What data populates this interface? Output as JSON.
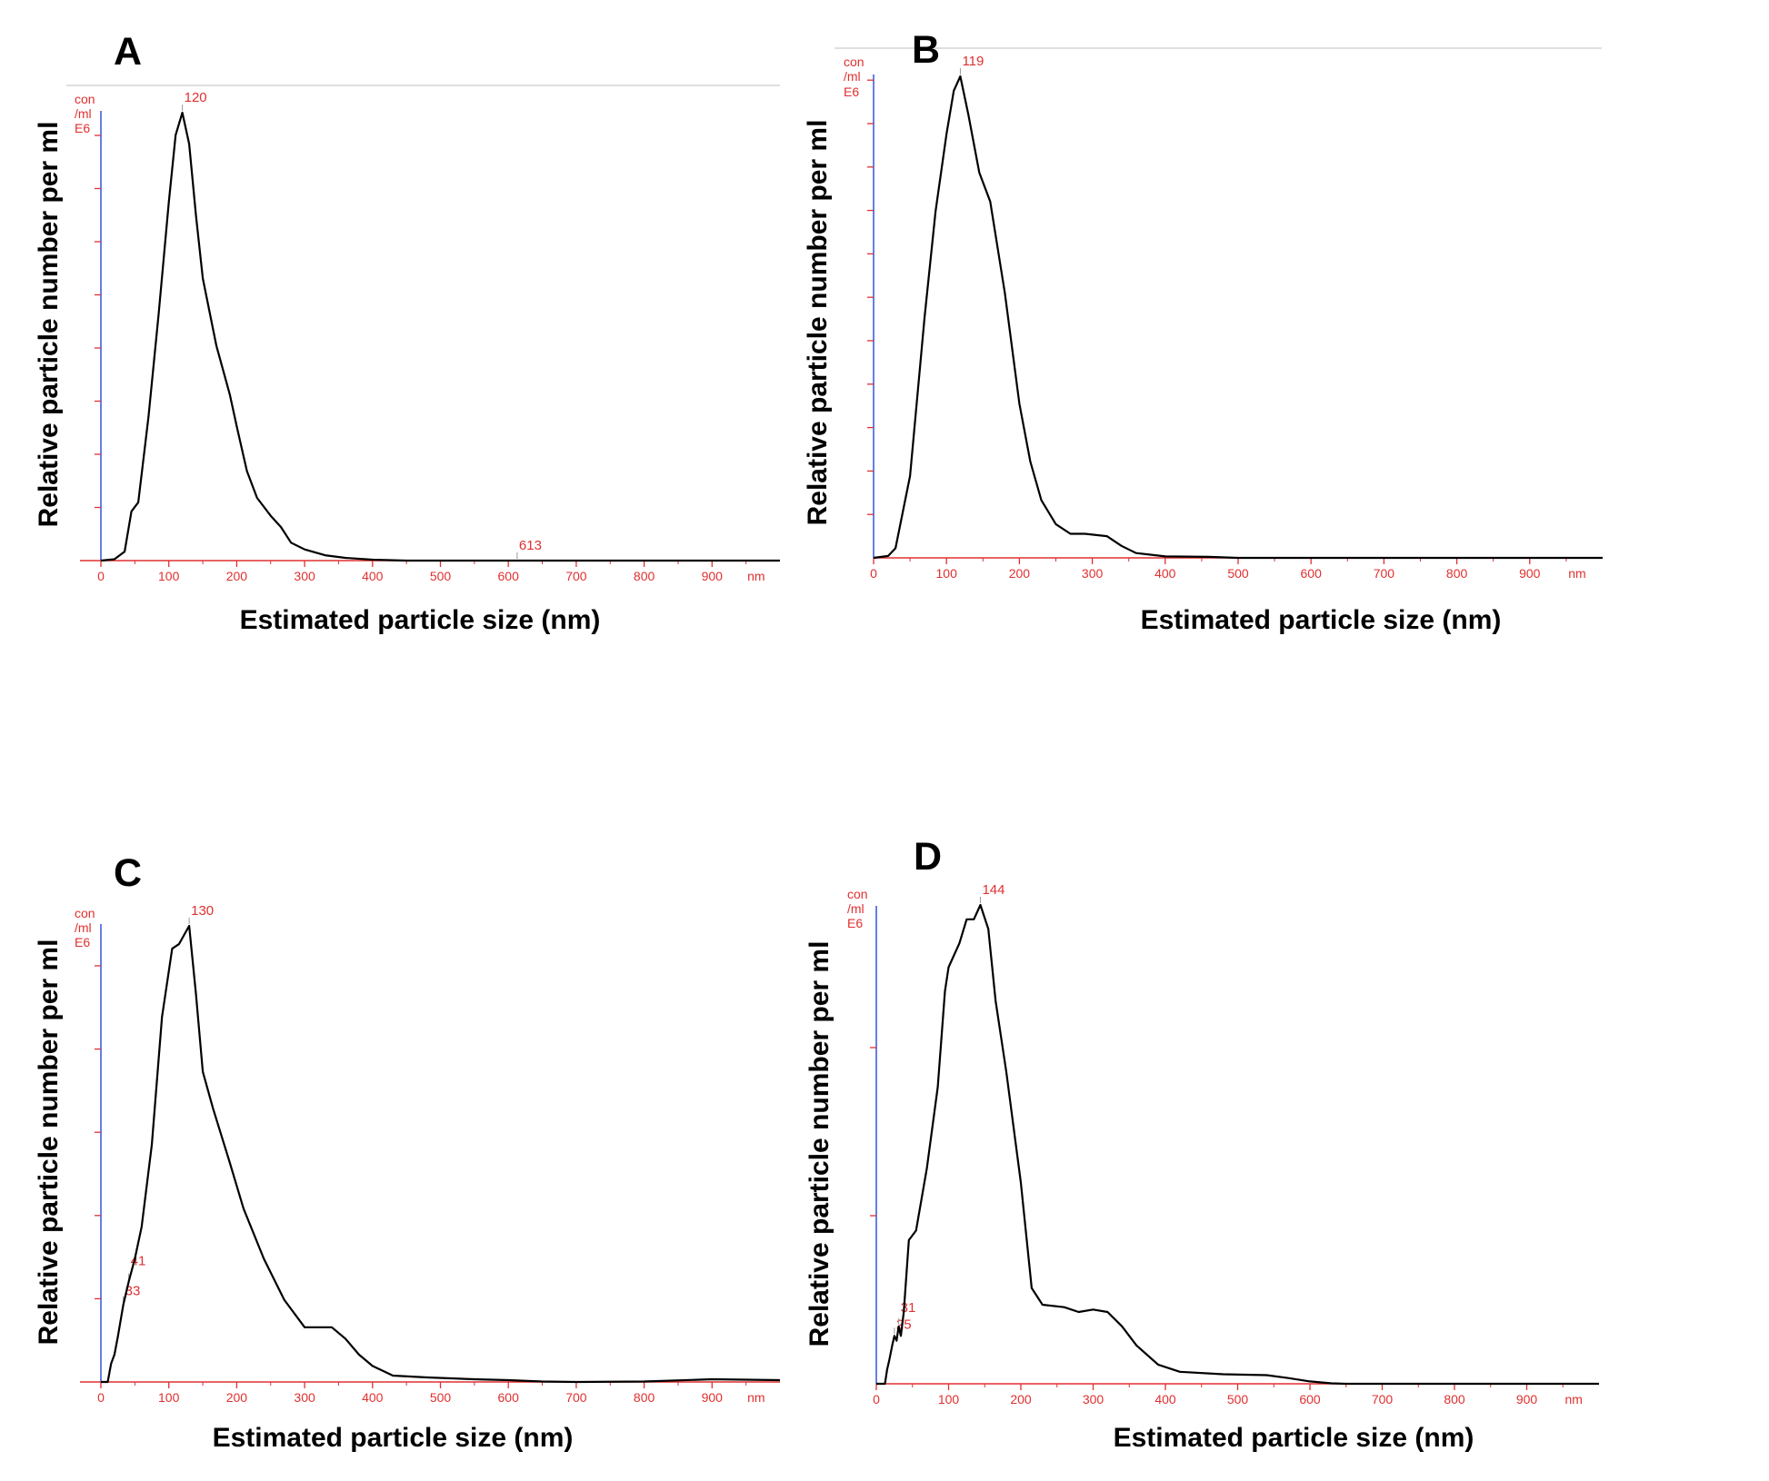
{
  "colors": {
    "axis_x": "#e03030",
    "axis_y": "#3355dd",
    "curve": "#000000",
    "frame": "#cccccc"
  },
  "chart_data": [
    {
      "type": "line",
      "panel": "A",
      "xlabel": "Estimated particle size (nm)",
      "ylabel": "Relative particle number per ml",
      "unit": [
        "con",
        "/ml",
        "E6"
      ],
      "x_unit": "nm",
      "xlim": [
        0,
        1000
      ],
      "x_ticks": [
        0,
        100,
        200,
        300,
        400,
        500,
        600,
        700,
        800,
        900
      ],
      "ylim": [
        0,
        1.0
      ],
      "y_tick_count": 9,
      "grid": false,
      "peak_labels": [
        {
          "x": 120,
          "text": "120"
        },
        {
          "x": 613,
          "text": "613"
        }
      ],
      "series": [
        {
          "x": [
            0,
            20,
            35,
            45,
            55,
            70,
            85,
            100,
            110,
            120,
            130,
            140,
            150,
            170,
            190,
            200,
            215,
            230,
            250,
            265,
            280,
            300,
            330,
            360,
            400,
            450,
            500,
            600,
            700,
            800,
            900,
            1000
          ],
          "y": [
            0,
            0.003,
            0.02,
            0.11,
            0.13,
            0.32,
            0.55,
            0.8,
            0.95,
            1.0,
            0.93,
            0.77,
            0.63,
            0.48,
            0.37,
            0.3,
            0.2,
            0.14,
            0.1,
            0.075,
            0.04,
            0.025,
            0.012,
            0.006,
            0.002,
            0.0,
            0.0,
            0.0,
            0.0,
            0.0,
            0.0,
            0.0
          ]
        }
      ]
    },
    {
      "type": "line",
      "panel": "B",
      "xlabel": "Estimated particle size (nm)",
      "ylabel": "Relative particle number per ml",
      "unit": [
        "con",
        "/ml",
        "E6"
      ],
      "x_unit": "nm",
      "xlim": [
        0,
        1000
      ],
      "x_ticks": [
        0,
        100,
        200,
        300,
        400,
        500,
        600,
        700,
        800,
        900
      ],
      "ylim": [
        0,
        1.0
      ],
      "y_tick_count": 11,
      "grid": false,
      "peak_labels": [
        {
          "x": 119,
          "text": "119"
        }
      ],
      "series": [
        {
          "x": [
            0,
            20,
            30,
            50,
            70,
            85,
            100,
            110,
            119,
            130,
            145,
            160,
            180,
            200,
            215,
            230,
            250,
            270,
            290,
            320,
            340,
            360,
            400,
            460,
            500,
            600,
            700,
            800,
            900,
            1000
          ],
          "y": [
            0,
            0.004,
            0.02,
            0.17,
            0.5,
            0.72,
            0.88,
            0.97,
            1.0,
            0.92,
            0.8,
            0.74,
            0.55,
            0.32,
            0.2,
            0.12,
            0.07,
            0.05,
            0.05,
            0.045,
            0.025,
            0.01,
            0.003,
            0.002,
            0.0,
            0.0,
            0.0,
            0.0,
            0.0,
            0.0
          ]
        }
      ]
    },
    {
      "type": "line",
      "panel": "C",
      "xlabel": "Estimated particle size (nm)",
      "ylabel": "Relative particle number per ml",
      "unit": [
        "con",
        "/ml",
        "E6"
      ],
      "x_unit": "nm",
      "xlim": [
        0,
        1000
      ],
      "x_ticks": [
        0,
        100,
        200,
        300,
        400,
        500,
        600,
        700,
        800,
        900
      ],
      "ylim": [
        0,
        1.0
      ],
      "y_tick_count": 5,
      "grid": false,
      "peak_labels": [
        {
          "x": 130,
          "text": "130"
        },
        {
          "x": 41,
          "text": "41"
        },
        {
          "x": 33,
          "text": "33"
        }
      ],
      "series": [
        {
          "x": [
            0,
            10,
            15,
            20,
            25,
            33,
            41,
            50,
            60,
            75,
            90,
            105,
            115,
            130,
            140,
            150,
            165,
            190,
            210,
            240,
            270,
            300,
            340,
            360,
            380,
            400,
            430,
            480,
            550,
            600,
            650,
            700,
            800,
            900,
            1000
          ],
          "y": [
            0,
            0.0,
            0.04,
            0.06,
            0.1,
            0.17,
            0.22,
            0.27,
            0.34,
            0.52,
            0.8,
            0.95,
            0.96,
            1.0,
            0.85,
            0.68,
            0.6,
            0.48,
            0.38,
            0.27,
            0.18,
            0.12,
            0.12,
            0.095,
            0.06,
            0.035,
            0.014,
            0.01,
            0.006,
            0.004,
            0.001,
            0.0,
            0.001,
            0.006,
            0.004
          ]
        }
      ]
    },
    {
      "type": "line",
      "panel": "D",
      "xlabel": "Estimated particle size (nm)",
      "ylabel": "Relative particle number per ml",
      "unit": [
        "con",
        "/ml",
        "E6"
      ],
      "x_unit": "nm",
      "xlim": [
        0,
        1000
      ],
      "x_ticks": [
        0,
        100,
        200,
        300,
        400,
        500,
        600,
        700,
        800,
        900
      ],
      "ylim": [
        0,
        1.0
      ],
      "y_tick_count": 3,
      "grid": false,
      "peak_labels": [
        {
          "x": 144,
          "text": "144"
        },
        {
          "x": 25,
          "text": "25"
        },
        {
          "x": 31,
          "text": "31"
        }
      ],
      "series": [
        {
          "x": [
            0,
            12,
            15,
            18,
            22,
            25,
            28,
            31,
            34,
            38,
            45,
            55,
            70,
            85,
            95,
            100,
            115,
            125,
            135,
            144,
            155,
            165,
            180,
            200,
            215,
            230,
            260,
            280,
            300,
            320,
            340,
            360,
            390,
            420,
            480,
            540,
            570,
            600,
            630,
            650,
            700,
            800,
            900,
            1000
          ],
          "y": [
            0,
            0.0,
            0.03,
            0.05,
            0.08,
            0.1,
            0.09,
            0.12,
            0.1,
            0.15,
            0.3,
            0.32,
            0.45,
            0.62,
            0.82,
            0.87,
            0.92,
            0.97,
            0.97,
            1.0,
            0.95,
            0.8,
            0.65,
            0.42,
            0.2,
            0.165,
            0.16,
            0.15,
            0.155,
            0.15,
            0.12,
            0.08,
            0.04,
            0.025,
            0.02,
            0.018,
            0.012,
            0.005,
            0.001,
            0.0,
            0.0,
            0.0,
            0.0,
            0.0
          ]
        }
      ]
    }
  ]
}
